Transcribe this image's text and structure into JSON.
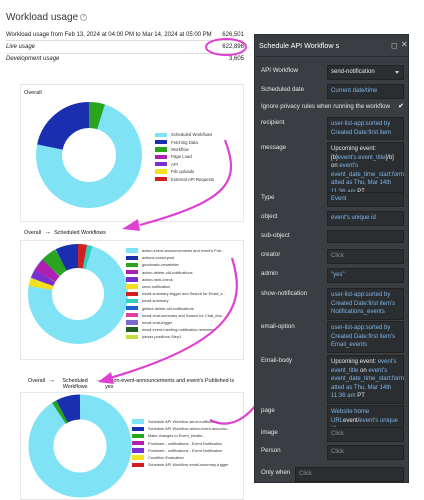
{
  "header": {
    "title": "Workload usage"
  },
  "usage": {
    "range_label": "Workload usage from Feb 13, 2024 at 04:00 PM to Mar 14, 2024 at 05:00 PM",
    "total": "626,501",
    "live_label": "Live usage",
    "live_value": "622,896",
    "dev_label": "Development usage",
    "dev_value": "3,605"
  },
  "charts": [
    {
      "title": "Overall",
      "legend": [
        {
          "label": "Scheduled Workflows",
          "color": "#7fe3f5"
        },
        {
          "label": "Fetching Data",
          "color": "#1a2fb0"
        },
        {
          "label": "Workflow",
          "color": "#2aa31f"
        },
        {
          "label": "Page Load",
          "color": "#b020b0"
        },
        {
          "label": "API",
          "color": "#7a2fd0"
        },
        {
          "label": "File uploads",
          "color": "#f5e020"
        },
        {
          "label": "External API Requests",
          "color": "#d02020"
        }
      ]
    },
    {
      "breadcrumb": [
        "Overall",
        "Scheduled Workflows"
      ],
      "legend": [
        {
          "label": "action-event-announcements and event's Pub...",
          "color": "#7fe3f5"
        },
        {
          "label": "actions-social-post",
          "color": "#1a2fb0"
        },
        {
          "label": "goodmatic-newsletter",
          "color": "#2aa31f"
        },
        {
          "label": "action-delete-old-notifications",
          "color": "#b020b0"
        },
        {
          "label": "action-rank-check",
          "color": "#7a2fd0"
        },
        {
          "label": "send-notification",
          "color": "#f5e020"
        },
        {
          "label": "email-summary-trigger and Search for Email_s...",
          "color": "#d02020"
        },
        {
          "label": "email-summary",
          "color": "#2fd0c0"
        },
        {
          "label": "getslot-delete-old-notifications",
          "color": "#2060d0"
        },
        {
          "label": "email-chat-summary and Search for Chat_cha...",
          "color": "#e040a0"
        },
        {
          "label": "email-chat-trigger",
          "color": "#7a6ad0"
        },
        {
          "label": "email-event-meeting-notification-reminder",
          "color": "#206020"
        },
        {
          "label": "parser-positions-Step1",
          "color": "#c0e040"
        }
      ]
    },
    {
      "breadcrumb": [
        "Overall",
        "Scheduled Workflows",
        "action-event-announcements and event's Published is yes"
      ],
      "legend": [
        {
          "label": "Schedule API Workflow send-notification",
          "color": "#7fe3f5"
        },
        {
          "label": "Schedule API Workflow action-event-announc...",
          "color": "#1a2fb0"
        },
        {
          "label": "Make changes to Event_emails...",
          "color": "#2aa31f"
        },
        {
          "label": "Postmark - notifications - Event Notification",
          "color": "#b020b0"
        },
        {
          "label": "Postmark - notifications - Event Notification",
          "color": "#7a2fd0"
        },
        {
          "label": "Condition Evaluation",
          "color": "#f5e020"
        },
        {
          "label": "Schedule API Workflow email-summary-trigger",
          "color": "#d02020"
        }
      ]
    }
  ],
  "panel": {
    "title": "Schedule API Workflow s",
    "rows": [
      {
        "label": "API Workflow",
        "value": "send-notification"
      },
      {
        "label": "Scheduled date",
        "value": "Current date/time"
      },
      {
        "label": "Ignore privacy rules when running the workflow"
      },
      {
        "label": "recipient",
        "value": "user-list-app:sorted by Created Date:first item"
      },
      {
        "label": "message",
        "value_parts": [
          "Upcoming event: [b]",
          "event's event_title",
          "[/b] on ",
          "event's event_date_time_start:form atted as Thu, Mar 14th 11:36 am",
          " PT"
        ]
      },
      {
        "label": "Type",
        "value": "Event"
      },
      {
        "label": "object",
        "value": "event's unique id"
      },
      {
        "label": "sub-object",
        "value": ""
      },
      {
        "label": "creator",
        "value": "Click"
      },
      {
        "label": "admin",
        "value": "\"yes\""
      },
      {
        "label": "show-notification",
        "value": "user-list-app:sorted by Created Date:first item's Notifications_events"
      },
      {
        "label": "email-option",
        "value": "user-list-app:sorted by Created Date:first item's Email_events"
      },
      {
        "label": "Email-body",
        "value_parts": [
          "Upcoming event: ",
          "event's event_title",
          " on ",
          "event's event_date_time_start:form atted as Thu, Mar 14th 11:36 am",
          " PT"
        ]
      },
      {
        "label": "page",
        "value_parts": [
          "Website home URL",
          "event/",
          "event's unique id"
        ]
      },
      {
        "label": "image",
        "value": "Click"
      },
      {
        "label": "Person",
        "value": "Click"
      },
      {
        "label": "Only when",
        "value": "Click"
      }
    ]
  }
}
